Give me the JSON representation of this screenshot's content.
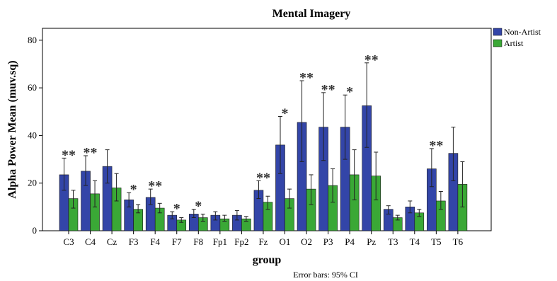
{
  "chart_data": {
    "type": "bar",
    "title": "Mental Imagery",
    "xlabel": "group",
    "ylabel": "Alpha Power Mean (muv.sq)",
    "footnote": "Error bars: 95% CI",
    "ylim": [
      0,
      85
    ],
    "yticks": [
      0,
      20,
      40,
      60,
      80
    ],
    "grid": false,
    "legend_position": "top-right",
    "categories": [
      "C3",
      "C4",
      "Cz",
      "F3",
      "F4",
      "F7",
      "F8",
      "Fp1",
      "Fp2",
      "Fz",
      "O1",
      "O2",
      "P3",
      "P4",
      "Pz",
      "T3",
      "T4",
      "T5",
      "T6"
    ],
    "series": [
      {
        "name": "Non-Artist",
        "color": "#3345a8",
        "values": [
          23.5,
          25,
          27,
          13,
          14,
          6.5,
          7,
          6.5,
          6.5,
          17,
          36,
          45.5,
          43.5,
          43.5,
          52.5,
          9,
          10,
          26,
          32.5
        ],
        "ci_low": [
          17,
          19,
          20,
          10,
          11,
          5,
          5.5,
          4.5,
          4.5,
          13.5,
          24,
          29,
          29.5,
          30,
          35,
          7,
          7.5,
          18.5,
          21
        ],
        "ci_high": [
          30.5,
          31.5,
          34,
          16,
          17.5,
          8,
          9,
          8,
          8.5,
          21,
          48,
          63,
          58,
          57,
          70.5,
          10.5,
          12.5,
          34.5,
          43.5
        ]
      },
      {
        "name": "Artist",
        "color": "#3aa836",
        "values": [
          13.5,
          15.5,
          18,
          9,
          9.5,
          4.5,
          5.5,
          5,
          5,
          12,
          13.5,
          17.5,
          19,
          23.5,
          23,
          5.5,
          7.5,
          12.5,
          19.5
        ],
        "ci_low": [
          9.5,
          10,
          12.5,
          7.5,
          7.5,
          3.5,
          4,
          4,
          4,
          9,
          9.5,
          11,
          12,
          13,
          13,
          4.5,
          6,
          9,
          10
        ],
        "ci_high": [
          17,
          21,
          24,
          11,
          11.5,
          5.5,
          7,
          6.5,
          6,
          14.5,
          17.5,
          23.5,
          26,
          34,
          33,
          6.5,
          9,
          16.5,
          29
        ]
      }
    ],
    "significance": [
      "**",
      "**",
      "",
      "*",
      "**",
      "*",
      "*",
      "",
      "",
      "**",
      "*",
      "**",
      "**",
      "*",
      "**",
      "",
      "",
      "**",
      ""
    ]
  }
}
